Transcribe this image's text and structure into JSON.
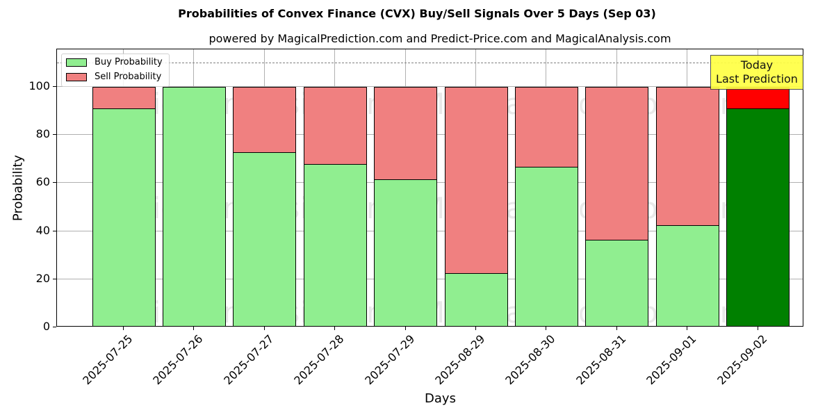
{
  "header": {
    "title": "Probabilities of Convex Finance (CVX) Buy/Sell Signals Over 5 Days (Sep 03)",
    "subtitle": "powered by MagicalPrediction.com and Predict-Price.com and MagicalAnalysis.com"
  },
  "legend": {
    "buy_label": "Buy Probability",
    "sell_label": "Sell Probability"
  },
  "annotation": {
    "line1": "Today",
    "line2": "Last Prediction"
  },
  "watermarks": [
    "MagicalAnalysis.com",
    "MagicalPrediction.com"
  ],
  "colors": {
    "buy": "#90ee90",
    "sell": "#f08080",
    "today_buy": "#008000",
    "today_sell": "#ff0000",
    "annotation_bg": "#ffff44"
  },
  "chart_data": {
    "type": "bar",
    "stacked": true,
    "title": "Probabilities of Convex Finance (CVX) Buy/Sell Signals Over 5 Days (Sep 03)",
    "subtitle": "powered by MagicalPrediction.com and Predict-Price.com and MagicalAnalysis.com",
    "xlabel": "Days",
    "ylabel": "Probability",
    "ylim": [
      0,
      115
    ],
    "yticks": [
      0,
      20,
      40,
      60,
      80,
      100
    ],
    "grid": true,
    "legend_position": "upper left",
    "reference_line": {
      "y": 110,
      "style": "dashed",
      "color": "#808080"
    },
    "categories": [
      "2025-07-25",
      "2025-07-26",
      "2025-07-27",
      "2025-07-28",
      "2025-07-29",
      "2025-08-29",
      "2025-08-30",
      "2025-08-31",
      "2025-09-01",
      "2025-09-02"
    ],
    "series": [
      {
        "name": "Buy Probability",
        "values": [
          91.0,
          100.0,
          72.8,
          68.0,
          61.6,
          22.6,
          66.8,
          36.4,
          42.6,
          91.0
        ]
      },
      {
        "name": "Sell Probability",
        "values": [
          9.0,
          0.0,
          27.2,
          32.0,
          38.4,
          77.4,
          33.2,
          63.6,
          57.4,
          9.0
        ]
      }
    ],
    "highlight": {
      "category": "2025-09-02",
      "label": "Today\nLast Prediction"
    }
  }
}
